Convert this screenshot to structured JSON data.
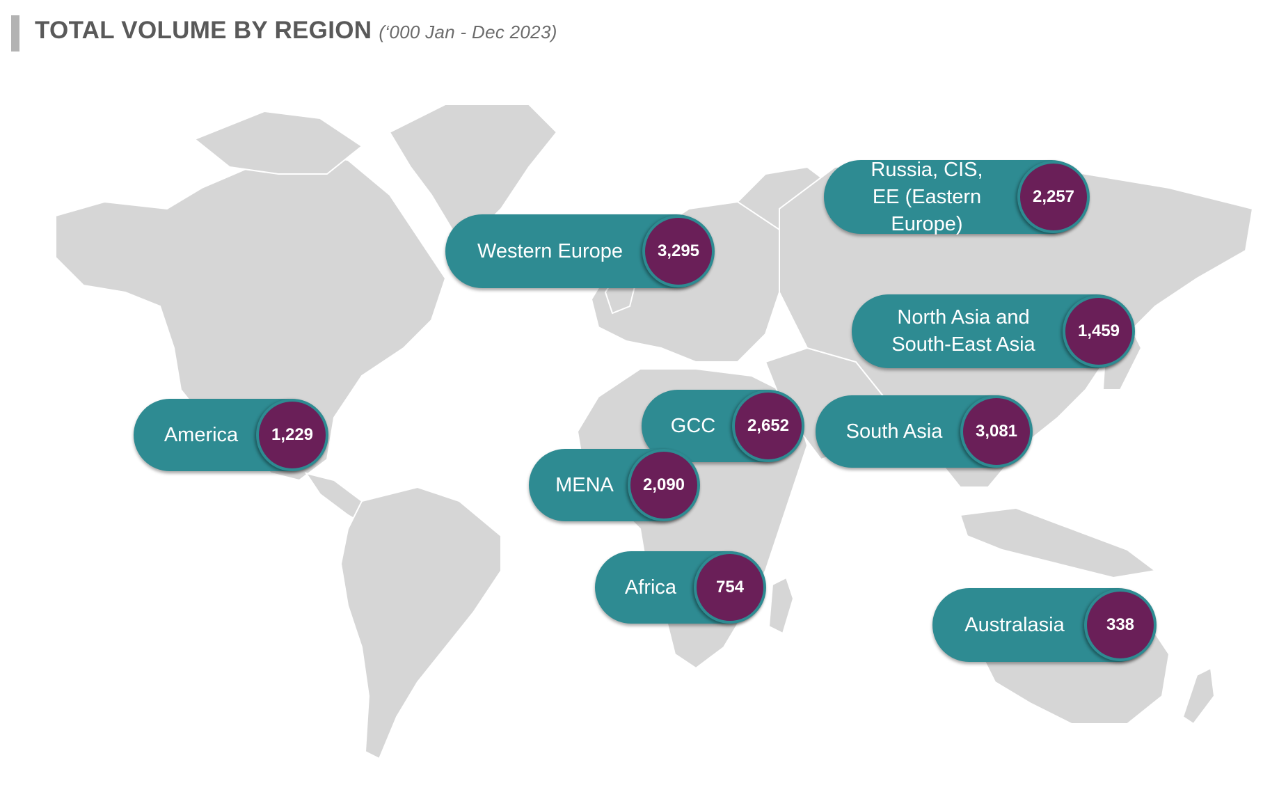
{
  "header": {
    "title": "TOTAL VOLUME BY REGION",
    "subtitle": "(‘000 Jan - Dec 2023)"
  },
  "colors": {
    "pill": "#2e8b92",
    "bubble": "#6a1f58",
    "land": "#d6d6d6"
  },
  "regions": [
    {
      "name": "Western Europe",
      "value": "3,295"
    },
    {
      "name": "Russia, CIS,\nEE (Eastern Europe)",
      "value": "2,257"
    },
    {
      "name": "North Asia and\nSouth-East Asia",
      "value": "1,459"
    },
    {
      "name": "America",
      "value": "1,229"
    },
    {
      "name": "GCC",
      "value": "2,652"
    },
    {
      "name": "South Asia",
      "value": "3,081"
    },
    {
      "name": "MENA",
      "value": "2,090"
    },
    {
      "name": "Africa",
      "value": "754"
    },
    {
      "name": "Australasia",
      "value": "338"
    }
  ]
}
